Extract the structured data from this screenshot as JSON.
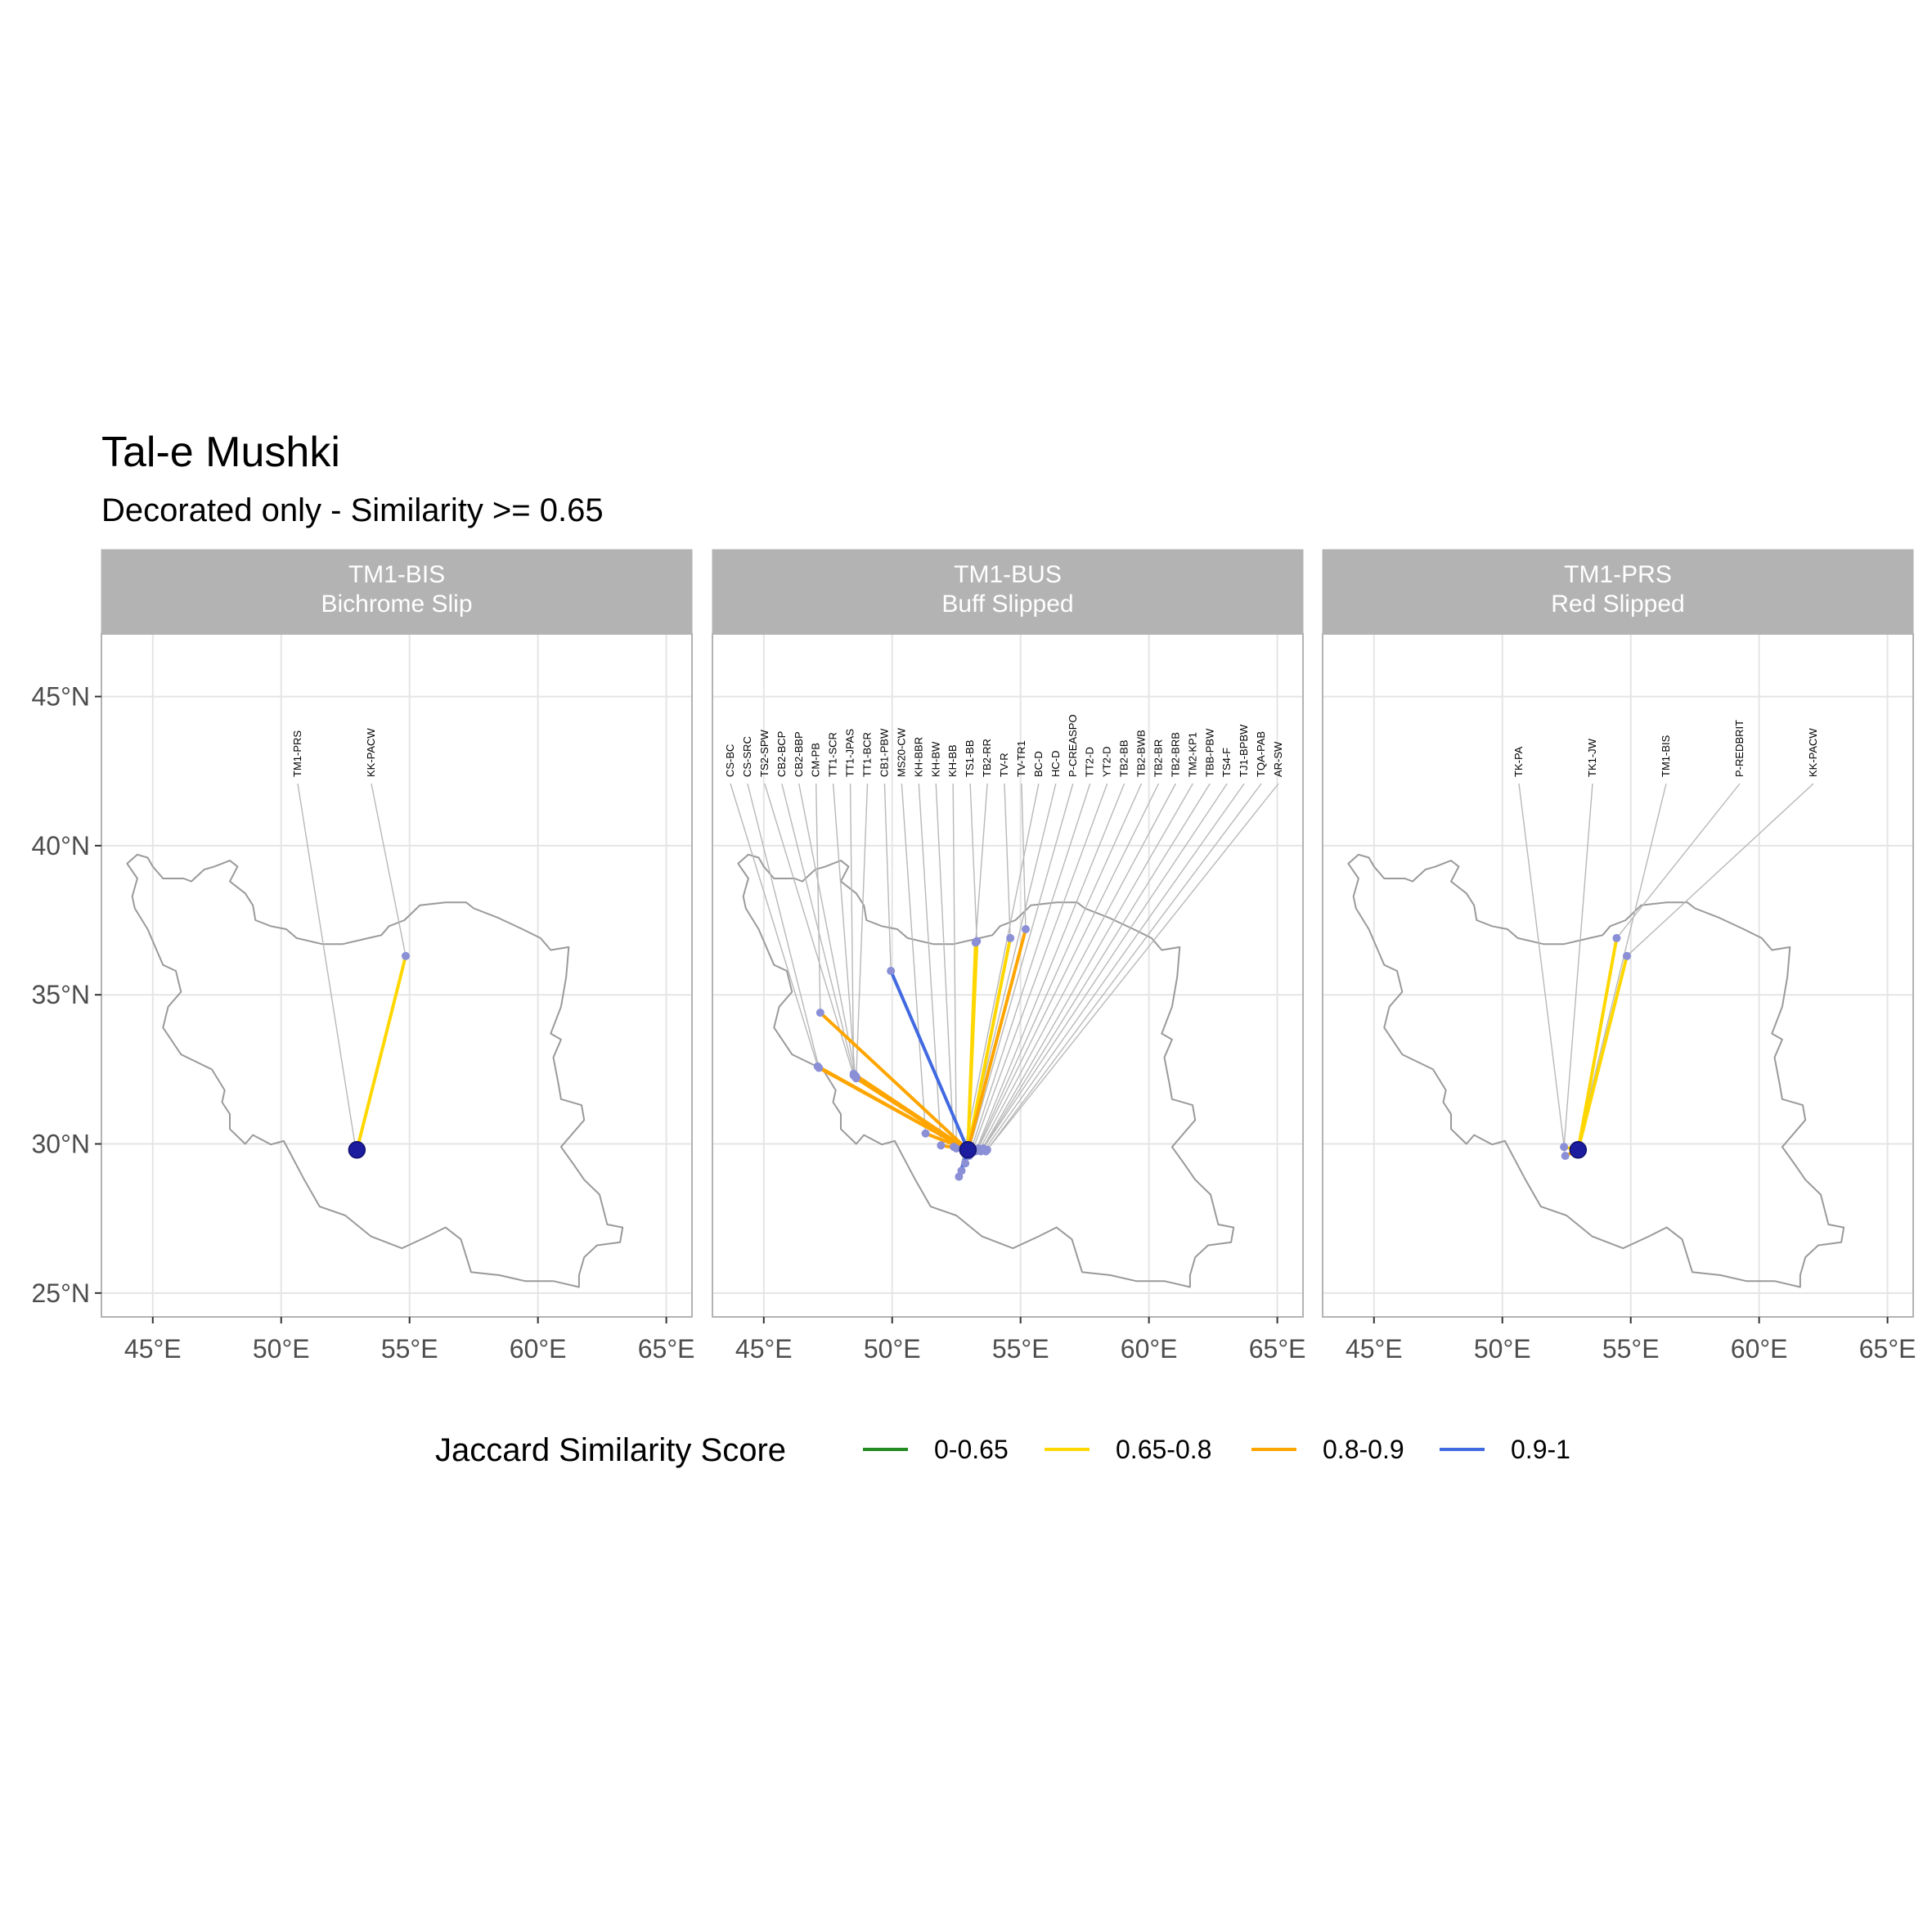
{
  "title": "Tal-e Mushki",
  "subtitle": "Decorated only - Similarity >= 0.65",
  "legend": {
    "title": "Jaccard Similarity Score",
    "items": [
      {
        "label": "0-0.65",
        "color": "#228B22"
      },
      {
        "label": "0.65-0.8",
        "color": "#FFD700"
      },
      {
        "label": "0.8-0.9",
        "color": "#FFA500"
      },
      {
        "label": "0.9-1",
        "color": "#4169E1"
      }
    ]
  },
  "x_ticks": [
    "45°E",
    "50°E",
    "55°E",
    "60°E",
    "65°E"
  ],
  "y_ticks": [
    "45°N",
    "40°N",
    "35°N",
    "30°N",
    "25°N"
  ],
  "chart_data": {
    "type": "map",
    "x_unit": "longitude °E",
    "y_unit": "latitude °N",
    "xlim": [
      43,
      66
    ],
    "ylim": [
      24.2,
      47.1
    ],
    "x_tick_values": [
      45,
      50,
      55,
      60,
      65
    ],
    "y_tick_values": [
      45,
      40,
      35,
      30,
      25
    ],
    "basemap": "Iran outline",
    "focus_site": {
      "lon": 52.95,
      "lat": 29.8
    },
    "facets": [
      {
        "strip_line1": "TM1-BIS",
        "strip_line2": "Bichrome Slip",
        "links": [
          {
            "label": "TM1-PRS",
            "lon": 52.9,
            "lat": 29.85,
            "score_class": "0.65-0.8"
          },
          {
            "label": "KK-PACW",
            "lon": 54.85,
            "lat": 36.3,
            "score_class": "0.65-0.8"
          }
        ]
      },
      {
        "strip_line1": "TM1-BUS",
        "strip_line2": "Buff Slipped",
        "links": [
          {
            "label": "CS-BC",
            "lon": 47.1,
            "lat": 32.6,
            "score_class": "0.8-0.9"
          },
          {
            "label": "CS-SRC",
            "lon": 47.15,
            "lat": 32.55,
            "score_class": "0.8-0.9"
          },
          {
            "label": "TS2-SPW",
            "lon": 48.5,
            "lat": 32.3,
            "score_class": "0.8-0.9"
          },
          {
            "label": "CB2-BCP",
            "lon": 48.55,
            "lat": 32.25,
            "score_class": "0.8-0.9"
          },
          {
            "label": "CB2-BBP",
            "lon": 48.6,
            "lat": 32.2,
            "score_class": "0.8-0.9"
          },
          {
            "label": "CM-PB",
            "lon": 47.2,
            "lat": 34.4,
            "score_class": "0.8-0.9"
          },
          {
            "label": "TT1-SCR",
            "lon": 48.55,
            "lat": 32.3,
            "score_class": "0.8-0.9"
          },
          {
            "label": "TT1-JPAS",
            "lon": 48.5,
            "lat": 32.35,
            "score_class": "0.8-0.9"
          },
          {
            "label": "TT1-BCR",
            "lon": 48.6,
            "lat": 32.25,
            "score_class": "0.8-0.9"
          },
          {
            "label": "CB1-PBW",
            "lon": 49.95,
            "lat": 35.8,
            "score_class": "0.9-1"
          },
          {
            "label": "MS20-CW",
            "lon": 51.3,
            "lat": 30.35,
            "score_class": "0.8-0.9"
          },
          {
            "label": "KH-BBR",
            "lon": 51.9,
            "lat": 29.95,
            "score_class": "0.8-0.9"
          },
          {
            "label": "KH-BW",
            "lon": 52.4,
            "lat": 29.9,
            "score_class": "0.8-0.9"
          },
          {
            "label": "KH-BB",
            "lon": 52.5,
            "lat": 29.85,
            "score_class": "0.8-0.9"
          },
          {
            "label": "TS1-BB",
            "lon": 53.3,
            "lat": 36.8,
            "score_class": "0.65-0.8"
          },
          {
            "label": "TB2-RR",
            "lon": 53.25,
            "lat": 36.75,
            "score_class": "0.65-0.8"
          },
          {
            "label": "TV-R",
            "lon": 54.6,
            "lat": 36.9,
            "score_class": "0.65-0.8"
          },
          {
            "label": "TV-TR1",
            "lon": 55.2,
            "lat": 37.2,
            "score_class": "0.8-0.9"
          },
          {
            "label": "BC-D",
            "lon": 52.6,
            "lat": 28.9,
            "score_class": "0.9-1"
          },
          {
            "label": "HC-D",
            "lon": 52.7,
            "lat": 29.1,
            "score_class": "0.9-1"
          },
          {
            "label": "P-CREASPO",
            "lon": 52.85,
            "lat": 29.35,
            "score_class": "0.9-1"
          },
          {
            "label": "TT2-D",
            "lon": 53.0,
            "lat": 29.6,
            "score_class": "0.9-1"
          },
          {
            "label": "YT2-D",
            "lon": 53.1,
            "lat": 29.7,
            "score_class": "0.9-1"
          },
          {
            "label": "TB2-BB",
            "lon": 53.25,
            "lat": 29.75,
            "score_class": "0.9-1"
          },
          {
            "label": "TB2-BWB",
            "lon": 53.3,
            "lat": 29.8,
            "score_class": "0.9-1"
          },
          {
            "label": "TB2-BR",
            "lon": 53.35,
            "lat": 29.85,
            "score_class": "0.9-1"
          },
          {
            "label": "TB2-BRB",
            "lon": 53.4,
            "lat": 29.8,
            "score_class": "0.9-1"
          },
          {
            "label": "TM2-KP1",
            "lon": 53.45,
            "lat": 29.75,
            "score_class": "0.9-1"
          },
          {
            "label": "TBB-PBW",
            "lon": 53.5,
            "lat": 29.8,
            "score_class": "0.9-1"
          },
          {
            "label": "TS4-F",
            "lon": 53.55,
            "lat": 29.85,
            "score_class": "0.9-1"
          },
          {
            "label": "TJ1-BPBW",
            "lon": 53.6,
            "lat": 29.8,
            "score_class": "0.9-1"
          },
          {
            "label": "TQA-PAB",
            "lon": 53.65,
            "lat": 29.75,
            "score_class": "0.9-1"
          },
          {
            "label": "AR-SW",
            "lon": 53.7,
            "lat": 29.8,
            "score_class": "0.9-1"
          }
        ]
      },
      {
        "strip_line1": "TM1-PRS",
        "strip_line2": "Red Slipped",
        "links": [
          {
            "label": "TK-PA",
            "lon": 52.45,
            "lat": 29.6,
            "score_class": "0.8-0.9"
          },
          {
            "label": "TK1-JW",
            "lon": 52.4,
            "lat": 29.9,
            "score_class": "0.65-0.8"
          },
          {
            "label": "TM1-BIS",
            "lon": 52.9,
            "lat": 29.85,
            "score_class": "0.65-0.8"
          },
          {
            "label": "P-REDBRIT",
            "lon": 54.45,
            "lat": 36.9,
            "score_class": "0.65-0.8"
          },
          {
            "label": "KK-PACW",
            "lon": 54.85,
            "lat": 36.3,
            "score_class": "0.65-0.8"
          }
        ]
      }
    ]
  }
}
